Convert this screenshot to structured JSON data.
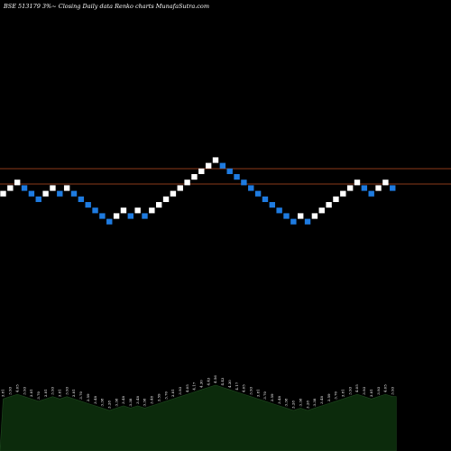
{
  "chart_data": {
    "type": "renko",
    "title": "BSE 513179 3%~  Closing Daily data  Renko  charts MunafaSutra.com",
    "colors": {
      "background": "#000000",
      "up_brick": "#ffffff",
      "down_brick": "#1e7be0",
      "reference_line": "#8b3a1a",
      "volume_area": "#0c2b0c",
      "volume_outline": "#1f4a1f",
      "volume_label": "#ffffff"
    },
    "reference_lines": [
      4.31,
      3.81
    ],
    "bricks": [
      {
        "dir": "up",
        "value": 3.81
      },
      {
        "dir": "up",
        "value": 3.93
      },
      {
        "dir": "up",
        "value": 4.05
      },
      {
        "dir": "down",
        "value": 3.93
      },
      {
        "dir": "down",
        "value": 3.81
      },
      {
        "dir": "down",
        "value": 3.7
      },
      {
        "dir": "up",
        "value": 3.81
      },
      {
        "dir": "up",
        "value": 3.93
      },
      {
        "dir": "down",
        "value": 3.81
      },
      {
        "dir": "up",
        "value": 3.93
      },
      {
        "dir": "down",
        "value": 3.81
      },
      {
        "dir": "down",
        "value": 3.7
      },
      {
        "dir": "down",
        "value": 3.59
      },
      {
        "dir": "down",
        "value": 3.48
      },
      {
        "dir": "down",
        "value": 3.38
      },
      {
        "dir": "down",
        "value": 3.28
      },
      {
        "dir": "up",
        "value": 3.38
      },
      {
        "dir": "up",
        "value": 3.48
      },
      {
        "dir": "down",
        "value": 3.38
      },
      {
        "dir": "up",
        "value": 3.48
      },
      {
        "dir": "down",
        "value": 3.38
      },
      {
        "dir": "up",
        "value": 3.48
      },
      {
        "dir": "up",
        "value": 3.59
      },
      {
        "dir": "up",
        "value": 3.7
      },
      {
        "dir": "up",
        "value": 3.81
      },
      {
        "dir": "up",
        "value": 3.93
      },
      {
        "dir": "up",
        "value": 4.05
      },
      {
        "dir": "up",
        "value": 4.17
      },
      {
        "dir": "up",
        "value": 4.3
      },
      {
        "dir": "up",
        "value": 4.43
      },
      {
        "dir": "up",
        "value": 4.56
      },
      {
        "dir": "down",
        "value": 4.43
      },
      {
        "dir": "down",
        "value": 4.3
      },
      {
        "dir": "down",
        "value": 4.17
      },
      {
        "dir": "down",
        "value": 4.05
      },
      {
        "dir": "down",
        "value": 3.93
      },
      {
        "dir": "down",
        "value": 3.81
      },
      {
        "dir": "down",
        "value": 3.7
      },
      {
        "dir": "down",
        "value": 3.59
      },
      {
        "dir": "down",
        "value": 3.48
      },
      {
        "dir": "down",
        "value": 3.38
      },
      {
        "dir": "down",
        "value": 3.28
      },
      {
        "dir": "up",
        "value": 3.38
      },
      {
        "dir": "down",
        "value": 3.28
      },
      {
        "dir": "up",
        "value": 3.38
      },
      {
        "dir": "up",
        "value": 3.48
      },
      {
        "dir": "up",
        "value": 3.59
      },
      {
        "dir": "up",
        "value": 3.7
      },
      {
        "dir": "up",
        "value": 3.81
      },
      {
        "dir": "up",
        "value": 3.93
      },
      {
        "dir": "up",
        "value": 4.05
      },
      {
        "dir": "down",
        "value": 3.93
      },
      {
        "dir": "down",
        "value": 3.81
      },
      {
        "dir": "up",
        "value": 3.93
      },
      {
        "dir": "up",
        "value": 4.05
      },
      {
        "dir": "down",
        "value": 3.93
      }
    ],
    "volume_labels": [
      "3.81",
      "3.93",
      "4.05",
      "3.93",
      "3.81",
      "3.70",
      "3.81",
      "3.93",
      "3.81",
      "3.93",
      "3.81",
      "3.70",
      "3.59",
      "3.48",
      "3.38",
      "3.28",
      "3.38",
      "3.48",
      "3.38",
      "3.48",
      "3.38",
      "3.48",
      "3.59",
      "3.70",
      "3.81",
      "3.93",
      "4.05",
      "4.17",
      "4.30",
      "4.43",
      "4.56",
      "4.43",
      "4.30",
      "4.17",
      "4.05",
      "3.93",
      "3.81",
      "3.70",
      "3.59",
      "3.48",
      "3.38",
      "3.28",
      "3.38",
      "3.28",
      "3.38",
      "3.48",
      "3.59",
      "3.70",
      "3.81",
      "3.93",
      "4.05",
      "3.93",
      "3.81",
      "3.93",
      "4.05",
      "3.93"
    ]
  }
}
